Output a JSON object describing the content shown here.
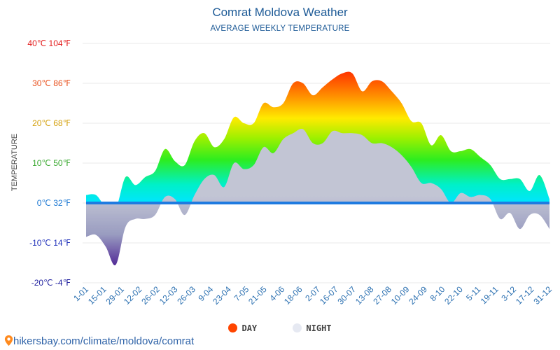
{
  "header": {
    "title": "Comrat Moldova Weather",
    "subtitle": "AVERAGE WEEKLY TEMPERATURE"
  },
  "legend": {
    "day_label": "DAY",
    "night_label": "NIGHT",
    "day_color": "#ff4500",
    "night_color": "#e6e9f2"
  },
  "footer": {
    "text": "hikersbay.com/climate/moldova/comrat"
  },
  "colors": {
    "title": "#1d5a96",
    "zero_band": "#1f7be0",
    "night_fill": "#b9bfdc",
    "grid": "#e8e8e8"
  },
  "chart_data": {
    "type": "area",
    "title": "Comrat Moldova Weather",
    "subtitle": "AVERAGE WEEKLY TEMPERATURE",
    "ylabel": "TEMPERATURE",
    "xlabel": "",
    "ylim": [
      -20,
      40
    ],
    "y_ticks": [
      {
        "value": 40,
        "label": "40℃ 104℉",
        "color": "#e31d1d"
      },
      {
        "value": 30,
        "label": "30℃ 86℉",
        "color": "#e8501c"
      },
      {
        "value": 20,
        "label": "20℃ 68℉",
        "color": "#d4a10f"
      },
      {
        "value": 10,
        "label": "10℃ 50℉",
        "color": "#39a82f"
      },
      {
        "value": 0,
        "label": "0℃ 32℉",
        "color": "#1b77d2"
      },
      {
        "value": -10,
        "label": "-10℃ 14℉",
        "color": "#2233bb"
      },
      {
        "value": -20,
        "label": "-20℃ -4℉",
        "color": "#1f1f9e"
      }
    ],
    "x_labels": [
      "1-01",
      "15-01",
      "29-01",
      "12-02",
      "26-02",
      "12-03",
      "26-03",
      "9-04",
      "23-04",
      "7-05",
      "21-05",
      "4-06",
      "18-06",
      "2-07",
      "16-07",
      "30-07",
      "13-08",
      "27-08",
      "10-09",
      "24-09",
      "8-10",
      "22-10",
      "5-11",
      "19-11",
      "3-12",
      "17-12",
      "31-12"
    ],
    "series": [
      {
        "name": "DAY",
        "values": [
          2,
          2,
          -1,
          -1.5,
          6.5,
          4.5,
          6.5,
          8,
          13.5,
          10.5,
          9.5,
          15.5,
          17.5,
          14,
          16,
          21.5,
          20,
          20,
          25,
          24,
          25,
          30,
          30,
          27,
          29,
          31,
          32.5,
          32.5,
          28,
          30.5,
          30.5,
          28,
          25,
          20.5,
          20,
          14.5,
          17,
          13,
          13,
          13.5,
          11.5,
          9.5,
          6,
          6,
          6,
          3,
          7,
          1
        ]
      },
      {
        "name": "NIGHT",
        "values": [
          -8.5,
          -8,
          -11,
          -15.5,
          -6,
          -4,
          -4,
          -3,
          1.5,
          1,
          -3,
          2,
          6,
          7,
          4,
          10,
          8.5,
          9.5,
          14,
          12.5,
          16,
          17.5,
          18.5,
          15,
          15,
          18,
          17.5,
          17.5,
          17,
          15,
          15,
          14,
          12,
          9,
          5,
          5,
          3.5,
          0,
          2.5,
          1.5,
          2,
          1,
          -4,
          -2.5,
          -6.5,
          -3,
          -3,
          -6.5
        ]
      }
    ]
  }
}
